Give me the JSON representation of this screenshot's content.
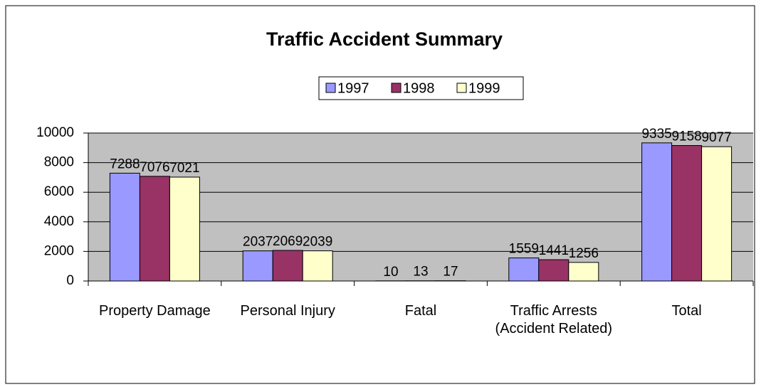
{
  "chart_data": {
    "type": "bar",
    "title": "Traffic Accident Summary",
    "categories": [
      "Property Damage",
      "Personal Injury",
      "Fatal",
      "Traffic Arrests (Accident Related)",
      "Total"
    ],
    "series": [
      {
        "name": "1997",
        "color": "#9999ff",
        "values": [
          7288,
          2037,
          10,
          1559,
          9335
        ]
      },
      {
        "name": "1998",
        "color": "#993366",
        "values": [
          7076,
          2069,
          13,
          1441,
          9158
        ]
      },
      {
        "name": "1999",
        "color": "#ffffcc",
        "values": [
          7021,
          2039,
          17,
          1256,
          9077
        ]
      }
    ],
    "ylim": [
      0,
      10000
    ],
    "yticks": [
      0,
      2000,
      4000,
      6000,
      8000,
      10000
    ],
    "grid": true,
    "legend": "top"
  }
}
